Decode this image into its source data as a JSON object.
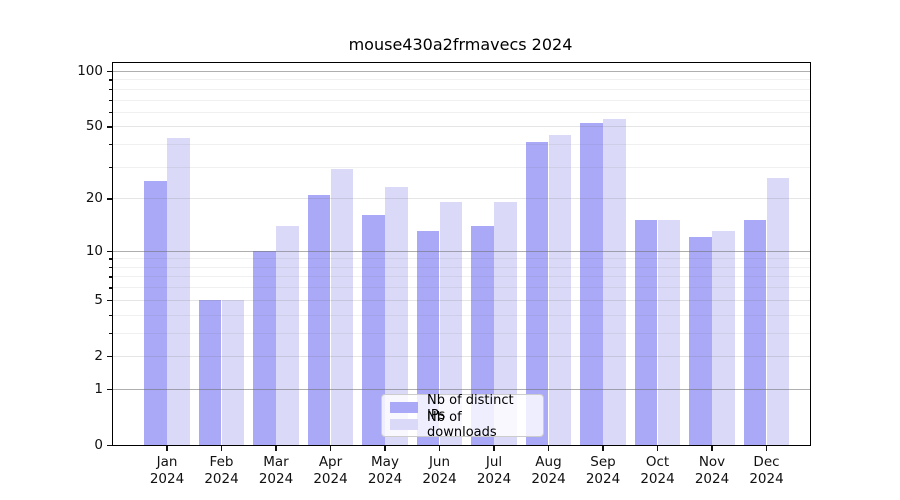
{
  "page": {
    "background_color": "#ffffff"
  },
  "chart_data": {
    "type": "bar",
    "title": "mouse430a2frmavecs 2024",
    "categories": [
      "Jan 2024",
      "Feb 2024",
      "Mar 2024",
      "Apr 2024",
      "May 2024",
      "Jun 2024",
      "Jul 2024",
      "Aug 2024",
      "Sep 2024",
      "Oct 2024",
      "Nov 2024",
      "Dec 2024"
    ],
    "x_tick_labels": [
      {
        "line1": "Jan",
        "line2": "2024"
      },
      {
        "line1": "Feb",
        "line2": "2024"
      },
      {
        "line1": "Mar",
        "line2": "2024"
      },
      {
        "line1": "Apr",
        "line2": "2024"
      },
      {
        "line1": "May",
        "line2": "2024"
      },
      {
        "line1": "Jun",
        "line2": "2024"
      },
      {
        "line1": "Jul",
        "line2": "2024"
      },
      {
        "line1": "Aug",
        "line2": "2024"
      },
      {
        "line1": "Sep",
        "line2": "2024"
      },
      {
        "line1": "Oct",
        "line2": "2024"
      },
      {
        "line1": "Nov",
        "line2": "2024"
      },
      {
        "line1": "Dec",
        "line2": "2024"
      }
    ],
    "series": [
      {
        "name": "Nb of distinct IPs",
        "color": "#a9a9f7",
        "values": [
          25,
          5,
          10,
          21,
          16,
          13,
          14,
          41,
          52,
          15,
          12,
          15
        ]
      },
      {
        "name": "Nb of downloads",
        "color": "#dadaf8",
        "values": [
          43,
          5,
          14,
          29,
          23,
          19,
          19,
          45,
          55,
          15,
          13,
          26
        ]
      }
    ],
    "xlabel": "",
    "ylabel": "",
    "yscale": "log10(1+value)",
    "ylim": [
      0,
      105
    ],
    "yticks": [
      0,
      1,
      2,
      5,
      10,
      20,
      50,
      100
    ],
    "grid": {
      "major": [
        1,
        10,
        100
      ],
      "mid": [
        2,
        5,
        20,
        50
      ],
      "minor": [
        3,
        4,
        6,
        7,
        8,
        9,
        30,
        40,
        60,
        70,
        80,
        90
      ]
    },
    "grid_on": true,
    "legend_position": "lower center"
  }
}
